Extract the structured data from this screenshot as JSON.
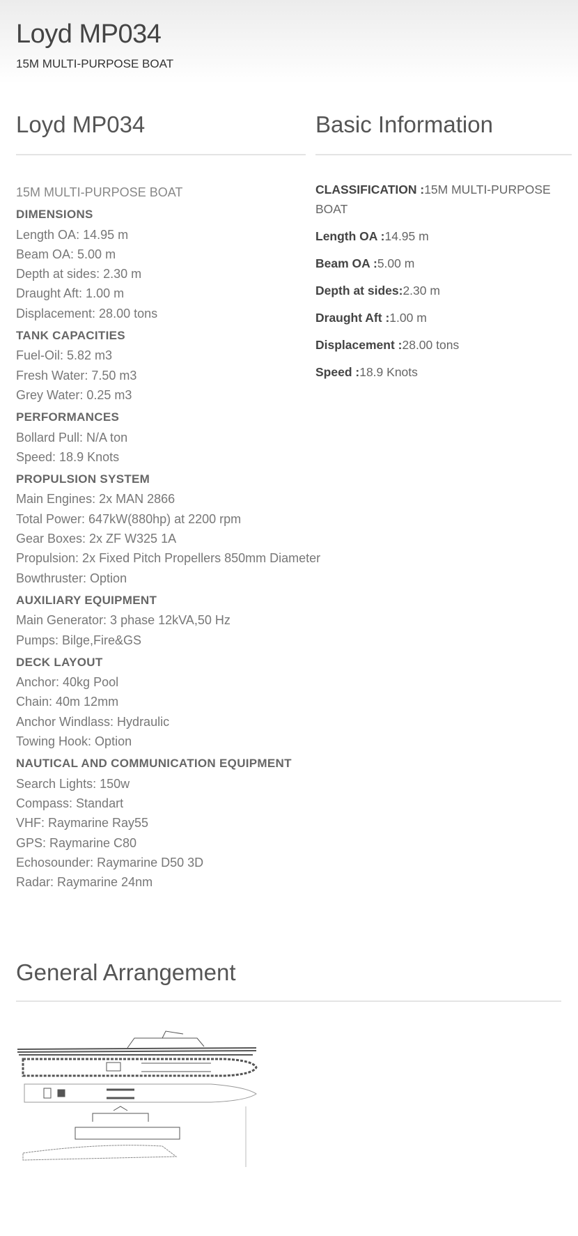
{
  "header": {
    "title": "Loyd MP034",
    "subtitle": "15M MULTI-PURPOSE BOAT"
  },
  "left": {
    "title": "Loyd MP034",
    "intro": "15M MULTI-PURPOSE BOAT",
    "sections": [
      {
        "heading": "DIMENSIONS",
        "lines": [
          "Length OA: 14.95 m",
          "Beam OA: 5.00 m",
          "Depth at sides: 2.30 m",
          "Draught Aft: 1.00 m",
          "Displacement: 28.00 tons"
        ]
      },
      {
        "heading": "TANK CAPACITIES",
        "lines": [
          "Fuel-Oil: 5.82 m3",
          "Fresh Water: 7.50 m3",
          "Grey Water: 0.25 m3"
        ]
      },
      {
        "heading": "PERFORMANCES",
        "lines": [
          "Bollard Pull: N/A ton",
          "Speed: 18.9 Knots"
        ]
      },
      {
        "heading": "PROPULSION SYSTEM",
        "lines": [
          "Main Engines: 2x MAN 2866",
          "Total Power: 647kW(880hp) at 2200 rpm",
          "Gear Boxes: 2x ZF W325 1A",
          "Propulsion: 2x Fixed Pitch Propellers 850mm Diameter",
          "Bowthruster: Option"
        ]
      },
      {
        "heading": "AUXILIARY EQUIPMENT",
        "lines": [
          "Main Generator: 3 phase 12kVA,50 Hz",
          "Pumps: Bilge,Fire&GS"
        ]
      },
      {
        "heading": "DECK LAYOUT",
        "lines": [
          "Anchor: 40kg Pool",
          "Chain: 40m 12mm",
          "Anchor Windlass: Hydraulic",
          "Towing Hook: Option"
        ]
      },
      {
        "heading": "NAUTICAL AND COMMUNICATION EQUIPMENT",
        "lines": [
          "Search Lights: 150w",
          "Compass: Standart",
          "VHF: Raymarine Ray55",
          "GPS: Raymarine C80",
          "Echosounder: Raymarine D50 3D",
          "Radar: Raymarine 24nm"
        ]
      }
    ]
  },
  "basic": {
    "title": "Basic Information",
    "rows": [
      {
        "label": "CLASSIFICATION :",
        "value": "15M MULTI-PURPOSE BOAT"
      },
      {
        "label": "Length OA :",
        "value": "14.95 m"
      },
      {
        "label": "Beam OA :",
        "value": "5.00 m"
      },
      {
        "label": "Depth at sides:",
        "value": "2.30 m"
      },
      {
        "label": "Draught Aft :",
        "value": "1.00 m"
      },
      {
        "label": "Displacement :",
        "value": "28.00 tons"
      },
      {
        "label": "Speed :",
        "value": "18.9 Knots"
      }
    ]
  },
  "arrangement": {
    "title": "General Arrangement"
  }
}
